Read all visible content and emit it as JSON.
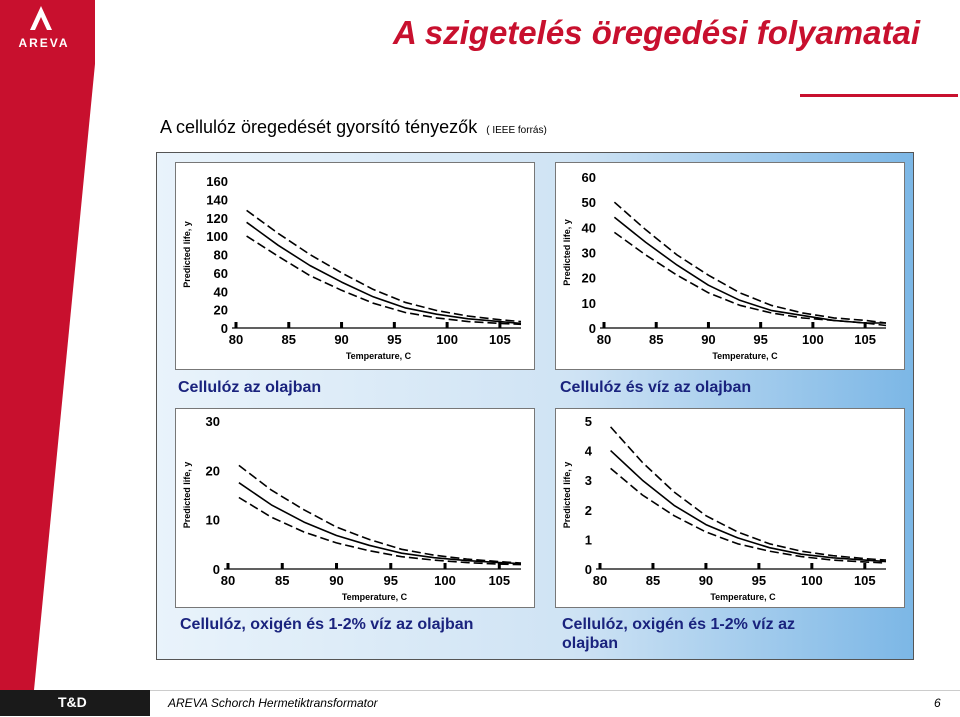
{
  "brand": {
    "logo_text": "AREVA",
    "color": "#c8102e"
  },
  "header": {
    "title": "A szigetelés öregedési folyamatai",
    "subtitle": "A cellulóz öregedését gyorsító tényezők",
    "source": "( IEEE forrás)"
  },
  "footer": {
    "badge": "T&D",
    "text": "AREVA Schorch Hermetiktransformator",
    "page": "6"
  },
  "chart_data": [
    {
      "type": "line",
      "caption": "Cellulóz az olajban",
      "xlabel": "Temperature, C",
      "ylabel": "Predicted life, y",
      "xlim": [
        80,
        107
      ],
      "ylim": [
        0,
        160
      ],
      "xticks": [
        "80",
        "85",
        "90",
        "95",
        "100",
        "105"
      ],
      "yticks": [
        "0",
        "20",
        "40",
        "60",
        "80",
        "100",
        "120",
        "140",
        "160"
      ],
      "x": [
        81,
        84,
        87,
        90,
        93,
        96,
        99,
        102,
        105,
        107
      ],
      "series": [
        {
          "style": "dashed",
          "values": [
            128,
            103,
            80,
            60,
            42,
            28,
            19,
            13,
            9,
            7
          ]
        },
        {
          "style": "solid",
          "values": [
            115,
            90,
            68,
            50,
            34,
            22,
            15,
            10,
            7,
            5
          ]
        },
        {
          "style": "dashed",
          "values": [
            100,
            78,
            57,
            41,
            27,
            17,
            11,
            7,
            5,
            4
          ]
        }
      ]
    },
    {
      "type": "line",
      "caption": "Cellulóz és víz az olajban",
      "xlabel": "Temperature, C",
      "ylabel": "Predicted life, y",
      "xlim": [
        80,
        107
      ],
      "ylim": [
        0,
        60
      ],
      "xticks": [
        "80",
        "85",
        "90",
        "95",
        "100",
        "105"
      ],
      "yticks": [
        "0",
        "10",
        "20",
        "30",
        "40",
        "50",
        "60"
      ],
      "x": [
        81,
        84,
        87,
        90,
        93,
        96,
        99,
        102,
        105,
        107
      ],
      "series": [
        {
          "style": "dashed",
          "values": [
            50,
            39,
            29,
            21,
            14,
            9,
            6,
            4,
            3,
            2
          ]
        },
        {
          "style": "solid",
          "values": [
            44,
            34,
            25,
            17,
            11,
            7,
            5,
            3,
            2,
            2
          ]
        },
        {
          "style": "dashed",
          "values": [
            38,
            29,
            21,
            14,
            9,
            6,
            4,
            3,
            2,
            1
          ]
        }
      ]
    },
    {
      "type": "line",
      "caption": "Cellulóz, oxigén és 1-2% víz az olajban",
      "xlabel": "Temperature, C",
      "ylabel": "Predicted life, y",
      "xlim": [
        80,
        107
      ],
      "ylim": [
        0,
        30
      ],
      "xticks": [
        "80",
        "85",
        "90",
        "95",
        "100",
        "105"
      ],
      "yticks": [
        "0",
        "10",
        "20",
        "30"
      ],
      "x": [
        81,
        84,
        87,
        90,
        93,
        96,
        99,
        102,
        105,
        107
      ],
      "series": [
        {
          "style": "dashed",
          "values": [
            21,
            16,
            12,
            8.5,
            6,
            4,
            2.8,
            2,
            1.5,
            1.2
          ]
        },
        {
          "style": "solid",
          "values": [
            17.5,
            13,
            9.5,
            6.8,
            4.8,
            3.2,
            2.3,
            1.7,
            1.3,
            1.1
          ]
        },
        {
          "style": "dashed",
          "values": [
            14.5,
            10.5,
            7.5,
            5.3,
            3.7,
            2.5,
            1.8,
            1.3,
            1,
            0.9
          ]
        }
      ]
    },
    {
      "type": "line",
      "caption": "Cellulóz, oxigén és 1-2% víz az olajban",
      "xlabel": "Temperature, C",
      "ylabel": "Predicted life, y",
      "xlim": [
        80,
        107
      ],
      "ylim": [
        0,
        5
      ],
      "xticks": [
        "80",
        "85",
        "90",
        "95",
        "100",
        "105"
      ],
      "yticks": [
        "0",
        "1",
        "2",
        "3",
        "4",
        "5"
      ],
      "x": [
        81,
        84,
        87,
        90,
        93,
        96,
        99,
        102,
        105,
        107
      ],
      "series": [
        {
          "style": "dashed",
          "values": [
            4.8,
            3.6,
            2.6,
            1.8,
            1.25,
            0.85,
            0.6,
            0.45,
            0.35,
            0.3
          ]
        },
        {
          "style": "solid",
          "values": [
            4,
            3,
            2.15,
            1.5,
            1.05,
            0.72,
            0.5,
            0.38,
            0.3,
            0.25
          ]
        },
        {
          "style": "dashed",
          "values": [
            3.4,
            2.5,
            1.8,
            1.25,
            0.85,
            0.6,
            0.42,
            0.3,
            0.24,
            0.2
          ]
        }
      ]
    }
  ]
}
